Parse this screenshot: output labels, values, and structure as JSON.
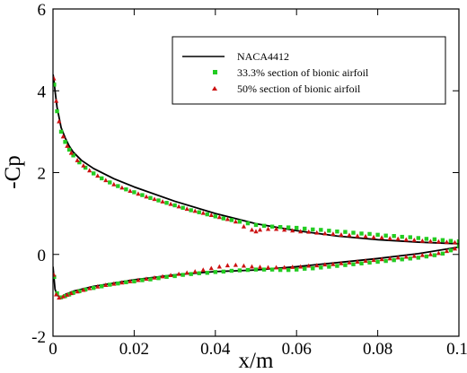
{
  "chart_data": {
    "type": "line",
    "xlabel": "x/m",
    "ylabel": "-Cp",
    "xlim": [
      0,
      0.1
    ],
    "ylim": [
      -2,
      6
    ],
    "x_ticks": [
      0,
      0.02,
      0.04,
      0.06,
      0.08,
      0.1
    ],
    "x_tick_labels": [
      "0",
      "0.02",
      "0.04",
      "0.06",
      "0.08",
      "0.1"
    ],
    "y_ticks": [
      -2,
      0,
      2,
      4,
      6
    ],
    "y_tick_labels": [
      "-2",
      "0",
      "2",
      "4",
      "6"
    ],
    "grid": false,
    "legend_position": "top-right",
    "series": [
      {
        "name": "NACA4412",
        "style": "line",
        "color": "#000000",
        "upper": {
          "x": [
            0.0,
            0.0002,
            0.0005,
            0.001,
            0.002,
            0.003,
            0.004,
            0.005,
            0.007,
            0.01,
            0.015,
            0.02,
            0.03,
            0.04,
            0.05,
            0.06,
            0.07,
            0.08,
            0.09,
            0.1
          ],
          "y": [
            4.4,
            4.3,
            4.0,
            3.6,
            3.1,
            2.85,
            2.65,
            2.5,
            2.3,
            2.1,
            1.85,
            1.65,
            1.3,
            1.0,
            0.75,
            0.58,
            0.45,
            0.36,
            0.3,
            0.26
          ]
        },
        "lower": {
          "x": [
            0.0,
            0.0005,
            0.001,
            0.002,
            0.003,
            0.005,
            0.01,
            0.02,
            0.03,
            0.04,
            0.05,
            0.06,
            0.07,
            0.08,
            0.09,
            0.1
          ],
          "y": [
            -0.3,
            -0.85,
            -1.0,
            -1.05,
            -0.98,
            -0.9,
            -0.78,
            -0.62,
            -0.5,
            -0.42,
            -0.38,
            -0.3,
            -0.2,
            -0.1,
            0.02,
            0.18
          ]
        }
      },
      {
        "name": "33.3% section of bionic airfoil",
        "style": "marker-square",
        "color": "#22cc22",
        "upper": {
          "x": [
            0.0003,
            0.001,
            0.002,
            0.003,
            0.004,
            0.005,
            0.0065,
            0.008,
            0.01,
            0.012,
            0.014,
            0.016,
            0.018,
            0.02,
            0.022,
            0.024,
            0.026,
            0.028,
            0.03,
            0.032,
            0.034,
            0.036,
            0.038,
            0.04,
            0.042,
            0.044,
            0.046,
            0.048,
            0.05,
            0.052,
            0.054,
            0.056,
            0.058,
            0.06,
            0.062,
            0.064,
            0.066,
            0.068,
            0.07,
            0.072,
            0.074,
            0.076,
            0.078,
            0.08,
            0.082,
            0.084,
            0.086,
            0.088,
            0.09,
            0.092,
            0.094,
            0.096,
            0.098,
            0.1
          ],
          "y": [
            4.15,
            3.5,
            3.0,
            2.75,
            2.56,
            2.42,
            2.25,
            2.12,
            1.98,
            1.86,
            1.76,
            1.67,
            1.59,
            1.52,
            1.45,
            1.38,
            1.32,
            1.26,
            1.2,
            1.14,
            1.08,
            1.03,
            0.98,
            0.93,
            0.88,
            0.84,
            0.8,
            0.76,
            0.72,
            0.7,
            0.68,
            0.67,
            0.66,
            0.65,
            0.63,
            0.61,
            0.6,
            0.58,
            0.56,
            0.55,
            0.53,
            0.51,
            0.5,
            0.48,
            0.46,
            0.45,
            0.43,
            0.42,
            0.4,
            0.38,
            0.37,
            0.35,
            0.33,
            0.32
          ]
        },
        "lower": {
          "x": [
            0.0003,
            0.001,
            0.002,
            0.003,
            0.004,
            0.005,
            0.0065,
            0.008,
            0.01,
            0.012,
            0.014,
            0.016,
            0.018,
            0.02,
            0.022,
            0.024,
            0.026,
            0.028,
            0.03,
            0.032,
            0.034,
            0.036,
            0.038,
            0.04,
            0.042,
            0.044,
            0.046,
            0.048,
            0.05,
            0.052,
            0.054,
            0.056,
            0.058,
            0.06,
            0.062,
            0.064,
            0.066,
            0.068,
            0.07,
            0.072,
            0.074,
            0.076,
            0.078,
            0.08,
            0.082,
            0.084,
            0.086,
            0.088,
            0.09,
            0.092,
            0.094,
            0.096,
            0.098,
            0.1
          ],
          "y": [
            -0.55,
            -0.95,
            -1.05,
            -1.02,
            -0.98,
            -0.94,
            -0.9,
            -0.86,
            -0.82,
            -0.78,
            -0.74,
            -0.71,
            -0.68,
            -0.66,
            -0.63,
            -0.61,
            -0.58,
            -0.55,
            -0.53,
            -0.5,
            -0.48,
            -0.46,
            -0.45,
            -0.43,
            -0.42,
            -0.4,
            -0.39,
            -0.38,
            -0.37,
            -0.37,
            -0.37,
            -0.38,
            -0.38,
            -0.37,
            -0.35,
            -0.34,
            -0.32,
            -0.3,
            -0.28,
            -0.26,
            -0.24,
            -0.22,
            -0.2,
            -0.18,
            -0.16,
            -0.14,
            -0.12,
            -0.1,
            -0.08,
            -0.05,
            -0.02,
            0.02,
            0.1,
            0.2
          ]
        }
      },
      {
        "name": "50% section of bionic airfoil",
        "style": "marker-triangle",
        "color": "#cc1111",
        "upper": {
          "x": [
            0.0002,
            0.0008,
            0.0015,
            0.0025,
            0.0035,
            0.0045,
            0.006,
            0.0075,
            0.009,
            0.011,
            0.013,
            0.015,
            0.017,
            0.019,
            0.021,
            0.023,
            0.025,
            0.027,
            0.029,
            0.031,
            0.033,
            0.035,
            0.037,
            0.039,
            0.041,
            0.043,
            0.045,
            0.047,
            0.049,
            0.05,
            0.051,
            0.053,
            0.055,
            0.057,
            0.059,
            0.061,
            0.063,
            0.065,
            0.067,
            0.069,
            0.071,
            0.073,
            0.075,
            0.077,
            0.079,
            0.081,
            0.083,
            0.085,
            0.087,
            0.089,
            0.091,
            0.093,
            0.095,
            0.097,
            0.099
          ],
          "y": [
            4.3,
            3.75,
            3.25,
            2.88,
            2.65,
            2.48,
            2.3,
            2.17,
            2.05,
            1.92,
            1.81,
            1.71,
            1.63,
            1.55,
            1.48,
            1.41,
            1.35,
            1.29,
            1.23,
            1.17,
            1.11,
            1.06,
            1.01,
            0.96,
            0.91,
            0.86,
            0.8,
            0.68,
            0.6,
            0.56,
            0.6,
            0.62,
            0.62,
            0.6,
            0.58,
            0.56,
            0.55,
            0.53,
            0.51,
            0.5,
            0.48,
            0.47,
            0.45,
            0.44,
            0.42,
            0.41,
            0.39,
            0.38,
            0.36,
            0.35,
            0.33,
            0.32,
            0.31,
            0.3,
            0.29
          ]
        },
        "lower": {
          "x": [
            0.0002,
            0.0008,
            0.0015,
            0.0025,
            0.0035,
            0.0045,
            0.006,
            0.0075,
            0.009,
            0.011,
            0.013,
            0.015,
            0.017,
            0.019,
            0.021,
            0.023,
            0.025,
            0.027,
            0.029,
            0.031,
            0.033,
            0.035,
            0.037,
            0.039,
            0.041,
            0.043,
            0.045,
            0.047,
            0.049,
            0.051,
            0.053,
            0.055,
            0.057,
            0.059,
            0.061,
            0.063,
            0.065,
            0.067,
            0.069,
            0.071,
            0.073,
            0.075,
            0.077,
            0.079,
            0.081,
            0.083,
            0.085,
            0.087,
            0.089,
            0.091,
            0.093,
            0.095,
            0.097,
            0.099
          ],
          "y": [
            -0.5,
            -0.98,
            -1.06,
            -1.03,
            -0.99,
            -0.95,
            -0.91,
            -0.87,
            -0.83,
            -0.79,
            -0.75,
            -0.72,
            -0.69,
            -0.66,
            -0.63,
            -0.6,
            -0.57,
            -0.54,
            -0.51,
            -0.48,
            -0.45,
            -0.42,
            -0.38,
            -0.34,
            -0.3,
            -0.27,
            -0.26,
            -0.28,
            -0.3,
            -0.31,
            -0.32,
            -0.32,
            -0.32,
            -0.31,
            -0.3,
            -0.28,
            -0.27,
            -0.25,
            -0.24,
            -0.22,
            -0.2,
            -0.18,
            -0.16,
            -0.14,
            -0.12,
            -0.1,
            -0.08,
            -0.06,
            -0.04,
            -0.02,
            0.0,
            0.03,
            0.08,
            0.14
          ]
        }
      }
    ]
  }
}
